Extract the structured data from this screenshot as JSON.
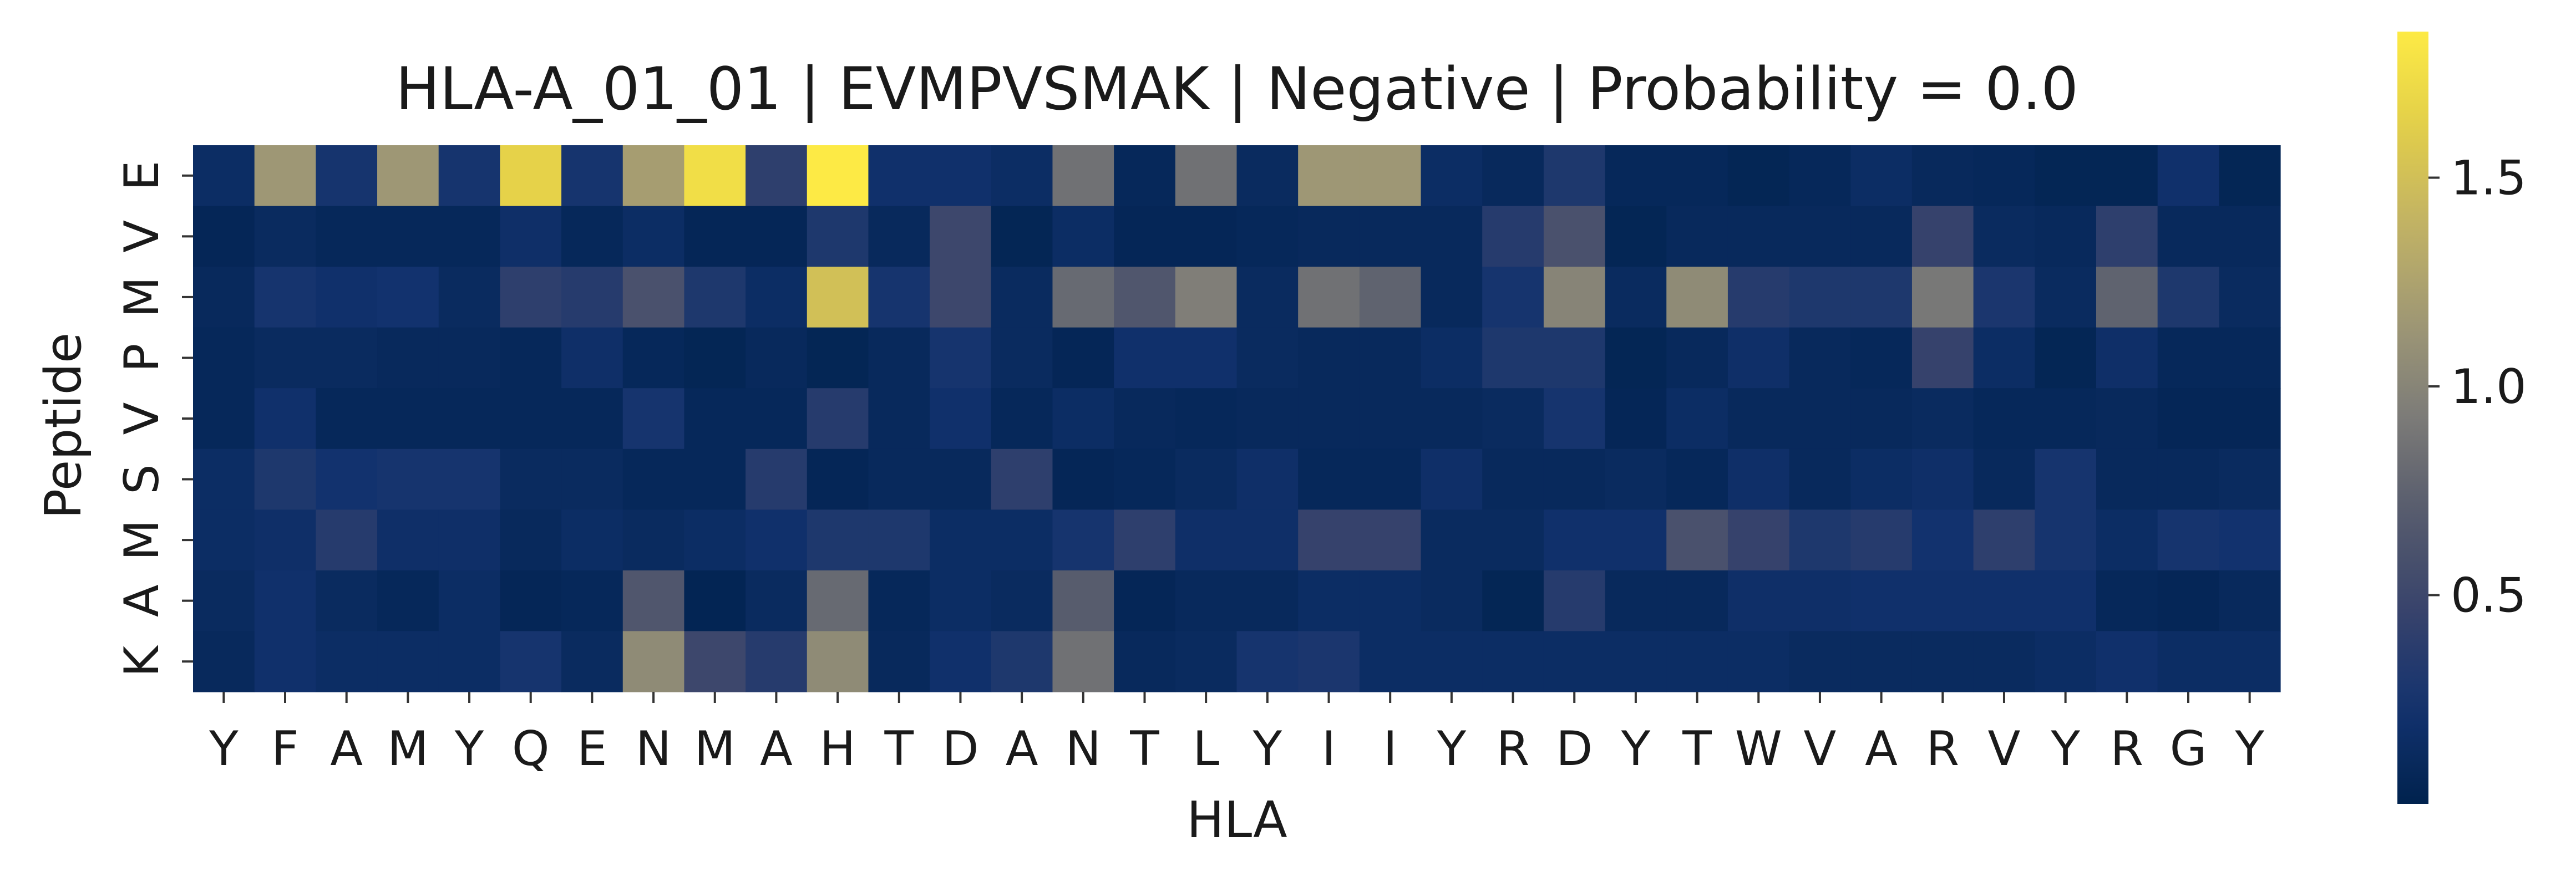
{
  "chart_data": {
    "type": "heatmap",
    "title": "HLA-A_01_01 | EVMPVSMAK | Negative | Probability = 0.0",
    "xlabel": "HLA",
    "ylabel": "Peptide",
    "x_labels": [
      "Y",
      "F",
      "A",
      "M",
      "Y",
      "Q",
      "E",
      "N",
      "M",
      "A",
      "H",
      "T",
      "D",
      "A",
      "N",
      "T",
      "L",
      "Y",
      "I",
      "I",
      "Y",
      "R",
      "D",
      "Y",
      "T",
      "W",
      "V",
      "A",
      "R",
      "V",
      "Y",
      "R",
      "G",
      "Y"
    ],
    "y_labels": [
      "E",
      "V",
      "M",
      "P",
      "V",
      "S",
      "M",
      "A",
      "K"
    ],
    "colorbar": {
      "colormap": "cividis",
      "range": [
        0.0,
        1.85
      ],
      "ticks": [
        0.5,
        1.0,
        1.5
      ],
      "tick_labels": [
        "0.5",
        "1.0",
        "1.5"
      ]
    },
    "values": [
      [
        0.15,
        1.15,
        0.25,
        1.15,
        0.25,
        1.65,
        0.25,
        1.2,
        1.75,
        0.4,
        1.85,
        0.2,
        0.2,
        0.15,
        0.85,
        0.08,
        0.85,
        0.12,
        1.15,
        1.15,
        0.15,
        0.1,
        0.3,
        0.08,
        0.08,
        0.05,
        0.08,
        0.15,
        0.1,
        0.08,
        0.05,
        0.05,
        0.2,
        0.05
      ],
      [
        0.06,
        0.12,
        0.08,
        0.08,
        0.08,
        0.18,
        0.08,
        0.15,
        0.06,
        0.06,
        0.3,
        0.1,
        0.5,
        0.05,
        0.15,
        0.06,
        0.06,
        0.08,
        0.1,
        0.1,
        0.1,
        0.35,
        0.6,
        0.05,
        0.1,
        0.1,
        0.1,
        0.1,
        0.45,
        0.12,
        0.1,
        0.4,
        0.1,
        0.1
      ],
      [
        0.1,
        0.25,
        0.2,
        0.22,
        0.12,
        0.4,
        0.35,
        0.6,
        0.3,
        0.15,
        1.5,
        0.25,
        0.5,
        0.12,
        0.8,
        0.65,
        0.95,
        0.12,
        0.85,
        0.75,
        0.1,
        0.25,
        1.0,
        0.12,
        1.05,
        0.35,
        0.3,
        0.3,
        0.9,
        0.28,
        0.12,
        0.75,
        0.3,
        0.12
      ],
      [
        0.08,
        0.12,
        0.12,
        0.1,
        0.1,
        0.08,
        0.18,
        0.08,
        0.05,
        0.1,
        0.05,
        0.1,
        0.25,
        0.12,
        0.06,
        0.2,
        0.2,
        0.12,
        0.1,
        0.1,
        0.15,
        0.3,
        0.3,
        0.05,
        0.1,
        0.18,
        0.1,
        0.08,
        0.45,
        0.15,
        0.05,
        0.18,
        0.08,
        0.08
      ],
      [
        0.08,
        0.2,
        0.08,
        0.08,
        0.08,
        0.08,
        0.08,
        0.25,
        0.08,
        0.08,
        0.35,
        0.1,
        0.2,
        0.08,
        0.15,
        0.1,
        0.08,
        0.1,
        0.1,
        0.1,
        0.1,
        0.12,
        0.25,
        0.06,
        0.15,
        0.1,
        0.1,
        0.1,
        0.12,
        0.08,
        0.08,
        0.1,
        0.06,
        0.06
      ],
      [
        0.15,
        0.3,
        0.22,
        0.25,
        0.25,
        0.12,
        0.12,
        0.08,
        0.08,
        0.35,
        0.06,
        0.1,
        0.1,
        0.4,
        0.06,
        0.08,
        0.12,
        0.18,
        0.08,
        0.08,
        0.18,
        0.1,
        0.1,
        0.12,
        0.08,
        0.18,
        0.1,
        0.15,
        0.18,
        0.1,
        0.25,
        0.1,
        0.1,
        0.12
      ],
      [
        0.15,
        0.18,
        0.35,
        0.18,
        0.18,
        0.1,
        0.15,
        0.12,
        0.15,
        0.2,
        0.3,
        0.3,
        0.15,
        0.15,
        0.25,
        0.4,
        0.18,
        0.18,
        0.45,
        0.45,
        0.12,
        0.12,
        0.2,
        0.2,
        0.6,
        0.45,
        0.3,
        0.35,
        0.22,
        0.4,
        0.25,
        0.15,
        0.25,
        0.22
      ],
      [
        0.12,
        0.2,
        0.12,
        0.08,
        0.15,
        0.06,
        0.08,
        0.65,
        0.04,
        0.12,
        0.8,
        0.08,
        0.15,
        0.12,
        0.7,
        0.06,
        0.1,
        0.1,
        0.15,
        0.15,
        0.12,
        0.05,
        0.35,
        0.1,
        0.1,
        0.18,
        0.18,
        0.2,
        0.2,
        0.2,
        0.2,
        0.08,
        0.06,
        0.1
      ],
      [
        0.1,
        0.2,
        0.15,
        0.15,
        0.15,
        0.25,
        0.12,
        1.05,
        0.5,
        0.35,
        1.05,
        0.1,
        0.2,
        0.3,
        0.85,
        0.1,
        0.12,
        0.25,
        0.28,
        0.15,
        0.15,
        0.15,
        0.15,
        0.15,
        0.15,
        0.15,
        0.12,
        0.12,
        0.12,
        0.12,
        0.15,
        0.2,
        0.15,
        0.15
      ]
    ]
  }
}
